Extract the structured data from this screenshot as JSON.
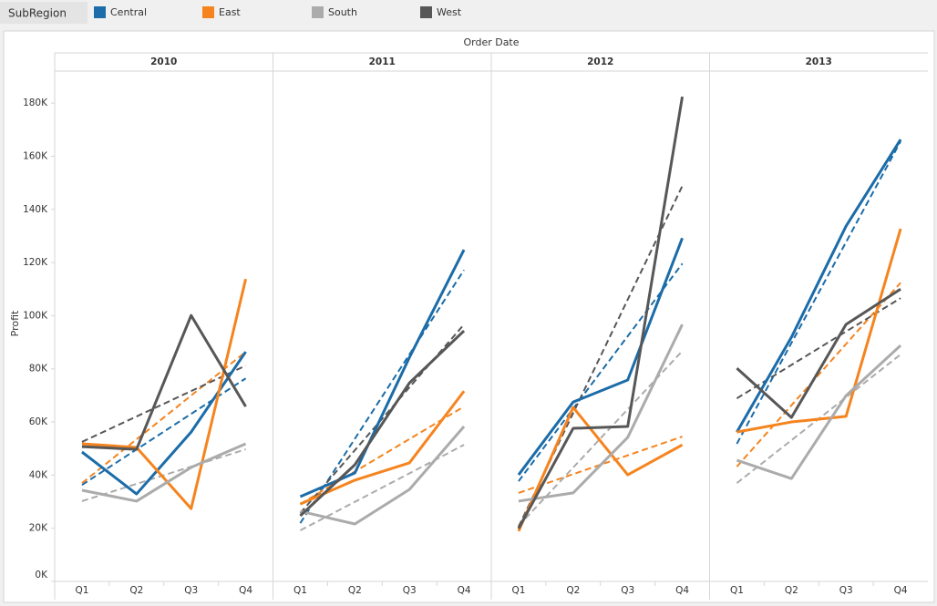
{
  "chart_data": {
    "type": "line",
    "legend_title": "SubRegion",
    "column_header": "Order Date",
    "ylabel": "Profit",
    "panels": [
      "2010",
      "2011",
      "2012",
      "2013"
    ],
    "categories": [
      "Q1",
      "Q2",
      "Q3",
      "Q4"
    ],
    "ylim": [
      0,
      190000
    ],
    "yticks": [
      {
        "value": 0,
        "label": "0K"
      },
      {
        "value": 20000,
        "label": "20K"
      },
      {
        "value": 40000,
        "label": "40K"
      },
      {
        "value": 60000,
        "label": "60K"
      },
      {
        "value": 80000,
        "label": "80K"
      },
      {
        "value": 100000,
        "label": "100K"
      },
      {
        "value": 120000,
        "label": "120K"
      },
      {
        "value": 140000,
        "label": "140K"
      },
      {
        "value": 160000,
        "label": "160K"
      },
      {
        "value": 180000,
        "label": "180K"
      }
    ],
    "grid": false,
    "series": [
      {
        "name": "Central",
        "color": "#1b6ca8",
        "values": [
          [
            48700,
            32900,
            56200,
            86400
          ],
          [
            31900,
            40800,
            84300,
            124800
          ],
          [
            40100,
            67500,
            75800,
            129200
          ],
          [
            56200,
            91900,
            133700,
            166300
          ]
        ],
        "trend": [
          [
            36300,
            76400
          ],
          [
            21900,
            117200
          ],
          [
            37700,
            119600
          ],
          [
            51800,
            165600
          ]
        ]
      },
      {
        "name": "East",
        "color": "#f5841f",
        "values": [
          [
            51800,
            50400,
            27400,
            113800
          ],
          [
            29100,
            38100,
            44600,
            71600
          ],
          [
            18900,
            65500,
            40100,
            51400
          ],
          [
            56200,
            60000,
            62100,
            132700
          ]
        ],
        "trend": [
          [
            37000,
            86400
          ],
          [
            29100,
            65800
          ],
          [
            33300,
            54500
          ],
          [
            43200,
            112400
          ]
        ]
      },
      {
        "name": "South",
        "color": "#ababab",
        "values": [
          [
            34300,
            30200,
            42900,
            51800
          ],
          [
            26400,
            21600,
            34600,
            58300
          ],
          [
            30200,
            33300,
            54200,
            96700
          ],
          [
            45600,
            38700,
            69900,
            88800
          ]
        ],
        "trend": [
          [
            30200,
            49700
          ],
          [
            19200,
            51400
          ],
          [
            20900,
            86700
          ],
          [
            37000,
            85400
          ]
        ]
      },
      {
        "name": "West",
        "color": "#575757",
        "values": [
          [
            50700,
            49700,
            100100,
            65800
          ],
          [
            24700,
            43900,
            74700,
            94300
          ],
          [
            19900,
            57600,
            58300,
            182400
          ],
          [
            80200,
            61700,
            96700,
            110000
          ]
        ],
        "trend": [
          [
            52500,
            81200
          ],
          [
            25700,
            96700
          ],
          [
            20600,
            148800
          ],
          [
            68900,
            106600
          ]
        ]
      }
    ]
  }
}
